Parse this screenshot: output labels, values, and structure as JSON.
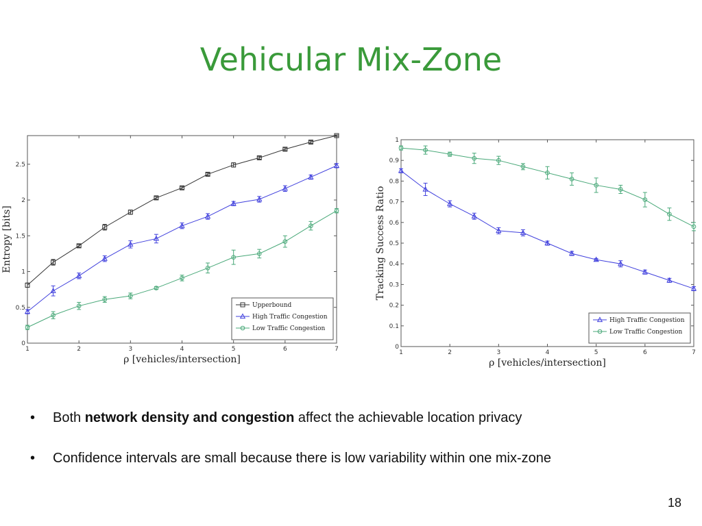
{
  "slide": {
    "title": "Vehicular Mix-Zone",
    "page_number": "18",
    "bullets": [
      {
        "pre": "Both ",
        "bold": "network density and congestion",
        "post": " affect the achievable location privacy"
      },
      {
        "text": "Confidence intervals are small because there is low variability within one mix-zone"
      }
    ]
  },
  "colors": {
    "title": "#3a9a3a",
    "upperbound": "#333333",
    "high": "#4040dd",
    "low": "#48a878"
  },
  "chart_data": [
    {
      "type": "line",
      "title": "",
      "xlabel": "ρ [vehicles/intersection]",
      "ylabel": "Entropy [bits]",
      "xlim": [
        1,
        7
      ],
      "ylim": [
        0,
        2.9
      ],
      "xticks": [
        1,
        2,
        3,
        4,
        5,
        6,
        7
      ],
      "yticks": [
        0,
        0.5,
        1,
        1.5,
        2,
        2.5
      ],
      "legend_position": "bottom-right",
      "x": [
        1,
        1.5,
        2,
        2.5,
        3,
        3.5,
        4,
        4.5,
        5,
        5.5,
        6,
        6.5,
        7
      ],
      "series": [
        {
          "name": "Upperbound",
          "marker": "square",
          "color": "#333333",
          "values": [
            0.81,
            1.13,
            1.36,
            1.62,
            1.83,
            2.03,
            2.17,
            2.36,
            2.49,
            2.59,
            2.71,
            2.81,
            2.9
          ],
          "errors": [
            0.03,
            0.04,
            0.02,
            0.04,
            0.03,
            0.02,
            0.02,
            0.02,
            0.03,
            0.02,
            0.02,
            0.02,
            0.01
          ]
        },
        {
          "name": "High Traffic Congestion",
          "marker": "triangle",
          "color": "#4040dd",
          "values": [
            0.44,
            0.73,
            0.94,
            1.18,
            1.38,
            1.46,
            1.64,
            1.77,
            1.95,
            2.01,
            2.16,
            2.32,
            2.48
          ],
          "errors": [
            0.03,
            0.07,
            0.04,
            0.04,
            0.05,
            0.06,
            0.04,
            0.04,
            0.03,
            0.04,
            0.04,
            0.03,
            0.03
          ]
        },
        {
          "name": "Low Traffic Congestion",
          "marker": "circle",
          "color": "#48a878",
          "values": [
            0.22,
            0.39,
            0.52,
            0.61,
            0.66,
            0.77,
            0.91,
            1.05,
            1.2,
            1.25,
            1.42,
            1.64,
            1.85
          ],
          "errors": [
            0.03,
            0.05,
            0.05,
            0.04,
            0.04,
            0.02,
            0.04,
            0.07,
            0.1,
            0.06,
            0.08,
            0.06,
            0.03
          ]
        }
      ]
    },
    {
      "type": "line",
      "title": "",
      "xlabel": "ρ [vehicles/intersection]",
      "ylabel": "Tracking Success Ratio",
      "xlim": [
        1,
        7
      ],
      "ylim": [
        0,
        1
      ],
      "xticks": [
        1,
        2,
        3,
        4,
        5,
        6,
        7
      ],
      "yticks": [
        0,
        0.1,
        0.2,
        0.3,
        0.4,
        0.5,
        0.6,
        0.7,
        0.8,
        0.9,
        1
      ],
      "legend_position": "bottom-right",
      "x": [
        1,
        1.5,
        2,
        2.5,
        3,
        3.5,
        4,
        4.5,
        5,
        5.5,
        6,
        6.5,
        7
      ],
      "series": [
        {
          "name": "High Traffic Congestion",
          "marker": "triangle",
          "color": "#4040dd",
          "values": [
            0.85,
            0.76,
            0.69,
            0.63,
            0.56,
            0.55,
            0.5,
            0.45,
            0.42,
            0.4,
            0.36,
            0.32,
            0.28
          ],
          "errors": [
            0.01,
            0.03,
            0.015,
            0.015,
            0.015,
            0.015,
            0.01,
            0.01,
            0.005,
            0.015,
            0.01,
            0.01,
            0.01
          ]
        },
        {
          "name": "Low Traffic Congestion",
          "marker": "circle",
          "color": "#48a878",
          "values": [
            0.96,
            0.95,
            0.93,
            0.91,
            0.9,
            0.87,
            0.84,
            0.81,
            0.78,
            0.76,
            0.71,
            0.64,
            0.58
          ],
          "errors": [
            0.01,
            0.02,
            0.01,
            0.025,
            0.02,
            0.015,
            0.03,
            0.03,
            0.035,
            0.02,
            0.035,
            0.03,
            0.02
          ]
        }
      ]
    }
  ]
}
